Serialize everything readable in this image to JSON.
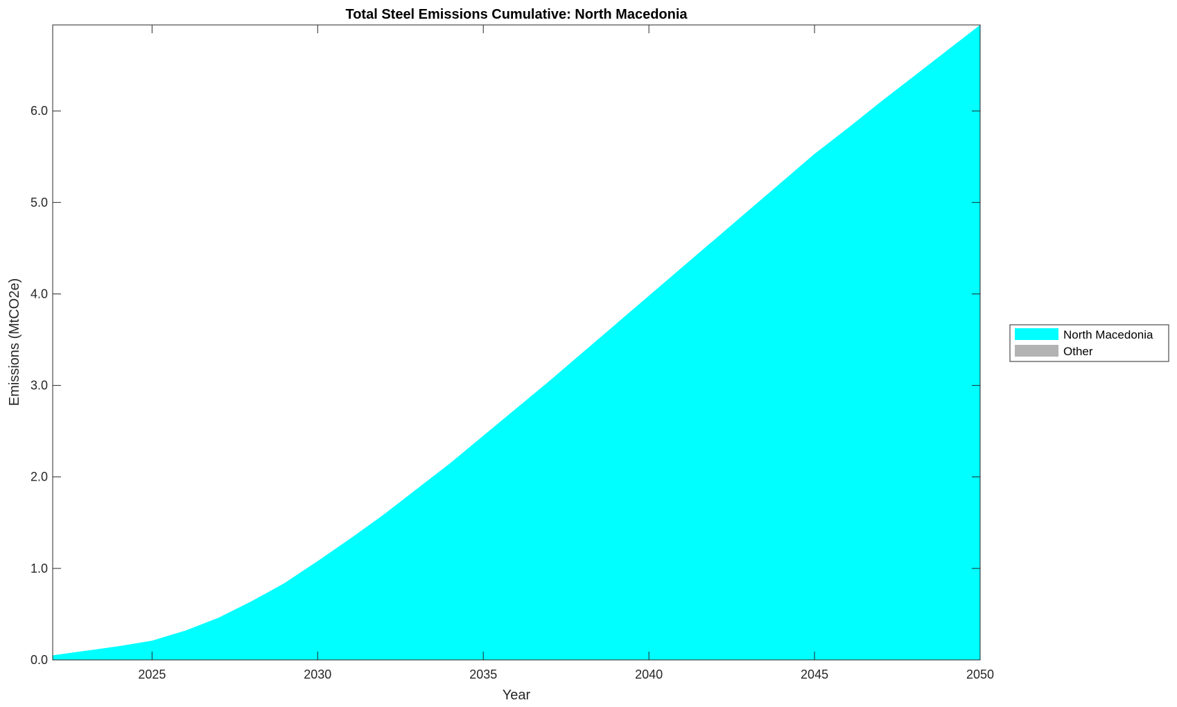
{
  "chart_data": {
    "type": "area",
    "title": "Total Steel Emissions Cumulative: North Macedonia",
    "xlabel": "Year",
    "ylabel": "Emissions (MtCO2e)",
    "xlim": [
      2022,
      2050
    ],
    "ylim": [
      0,
      6.94
    ],
    "xticks": [
      "2025",
      "2030",
      "2035",
      "2040",
      "2045",
      "2050"
    ],
    "yticks": [
      "0.0",
      "1.0",
      "2.0",
      "3.0",
      "4.0",
      "5.0",
      "6.0"
    ],
    "legend_position": "right",
    "grid": false,
    "x": [
      2022,
      2023,
      2024,
      2025,
      2026,
      2027,
      2028,
      2029,
      2030,
      2031,
      2032,
      2033,
      2034,
      2035,
      2036,
      2037,
      2038,
      2039,
      2040,
      2041,
      2042,
      2043,
      2044,
      2045,
      2046,
      2047,
      2048,
      2049,
      2050
    ],
    "series": [
      {
        "name": "North Macedonia",
        "color": "#00FFFF",
        "values": [
          0.05,
          0.1,
          0.15,
          0.21,
          0.32,
          0.46,
          0.64,
          0.84,
          1.08,
          1.33,
          1.59,
          1.87,
          2.15,
          2.45,
          2.75,
          3.05,
          3.36,
          3.67,
          3.98,
          4.29,
          4.6,
          4.91,
          5.22,
          5.53,
          5.81,
          6.1,
          6.38,
          6.66,
          6.94
        ]
      },
      {
        "name": "Other",
        "color": "#B3B3B3",
        "values": [
          0,
          0,
          0,
          0,
          0,
          0,
          0,
          0,
          0,
          0,
          0,
          0,
          0,
          0,
          0,
          0,
          0,
          0,
          0,
          0,
          0,
          0,
          0,
          0,
          0,
          0,
          0,
          0,
          0
        ]
      }
    ]
  }
}
